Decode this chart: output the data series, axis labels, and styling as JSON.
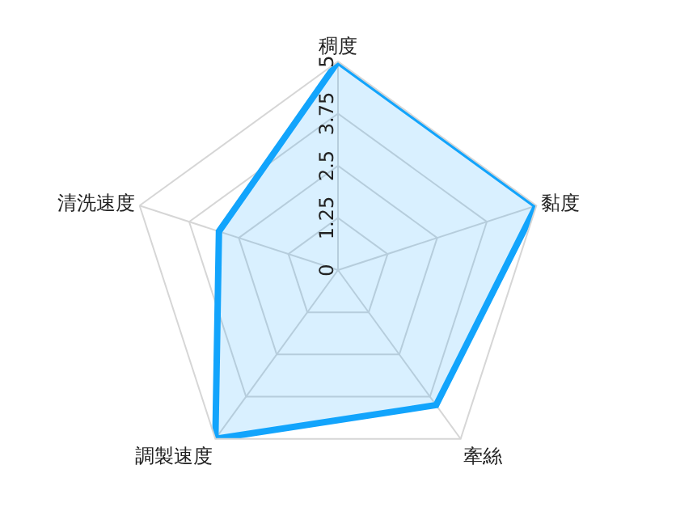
{
  "chart_data": {
    "type": "radar",
    "categories": [
      "稠度",
      "黏度",
      "牽絲",
      "調製速度",
      "清洗速度"
    ],
    "series": [
      {
        "color": "#12a4fc",
        "values": [
          5,
          5,
          4,
          5,
          3
        ]
      }
    ],
    "ylim": [
      0,
      5
    ],
    "yticks": [
      0,
      1.25,
      2.5,
      3.75,
      5
    ],
    "grid": true,
    "legend": false,
    "marker": "none",
    "line_style": "solid"
  }
}
